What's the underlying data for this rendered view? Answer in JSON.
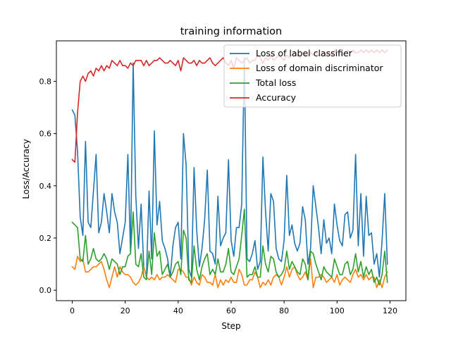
{
  "chart_data": {
    "type": "line",
    "title": "training information",
    "xlabel": "Step",
    "ylabel": "Loss/Accuracy",
    "xlim": [
      -6,
      126
    ],
    "ylim": [
      -0.04,
      0.955
    ],
    "xticks": [
      0,
      20,
      40,
      60,
      80,
      100,
      120
    ],
    "yticks": [
      0.0,
      0.2,
      0.4,
      0.6,
      0.8
    ],
    "xtick_labels": [
      "0",
      "20",
      "40",
      "60",
      "80",
      "100",
      "120"
    ],
    "ytick_labels": [
      "0.0",
      "0.2",
      "0.4",
      "0.6",
      "0.8"
    ],
    "grid": false,
    "legend": "top-right",
    "x": [
      0,
      1,
      2,
      3,
      4,
      5,
      6,
      7,
      8,
      9,
      10,
      11,
      12,
      13,
      14,
      15,
      16,
      17,
      18,
      19,
      20,
      21,
      22,
      23,
      24,
      25,
      26,
      27,
      28,
      29,
      30,
      31,
      32,
      33,
      34,
      35,
      36,
      37,
      38,
      39,
      40,
      41,
      42,
      43,
      44,
      45,
      46,
      47,
      48,
      49,
      50,
      51,
      52,
      53,
      54,
      55,
      56,
      57,
      58,
      59,
      60,
      61,
      62,
      63,
      64,
      65,
      66,
      67,
      68,
      69,
      70,
      71,
      72,
      73,
      74,
      75,
      76,
      77,
      78,
      79,
      80,
      81,
      82,
      83,
      84,
      85,
      86,
      87,
      88,
      89,
      90,
      91,
      92,
      93,
      94,
      95,
      96,
      97,
      98,
      99,
      100,
      101,
      102,
      103,
      104,
      105,
      106,
      107,
      108,
      109,
      110,
      111,
      112,
      113,
      114,
      115,
      116,
      117,
      118,
      119
    ],
    "series": [
      {
        "name": "Loss of label classifier",
        "color": "#1f77b4",
        "values": [
          0.69,
          0.67,
          0.53,
          0.28,
          0.21,
          0.57,
          0.26,
          0.24,
          0.38,
          0.52,
          0.22,
          0.26,
          0.37,
          0.3,
          0.22,
          0.37,
          0.3,
          0.26,
          0.14,
          0.2,
          0.26,
          0.52,
          0.14,
          0.87,
          0.36,
          0.16,
          0.33,
          0.09,
          0.05,
          0.38,
          0.12,
          0.61,
          0.25,
          0.34,
          0.19,
          0.16,
          0.12,
          0.05,
          0.17,
          0.24,
          0.26,
          0.12,
          0.6,
          0.48,
          0.08,
          0.05,
          0.47,
          0.23,
          0.09,
          0.16,
          0.27,
          0.46,
          0.15,
          0.14,
          0.1,
          0.36,
          0.17,
          0.2,
          0.22,
          0.5,
          0.19,
          0.13,
          0.24,
          0.24,
          0.33,
          0.89,
          0.12,
          0.11,
          0.14,
          0.19,
          0.08,
          0.11,
          0.51,
          0.3,
          0.15,
          0.37,
          0.34,
          0.16,
          0.12,
          0.11,
          0.19,
          0.44,
          0.21,
          0.25,
          0.18,
          0.15,
          0.18,
          0.32,
          0.27,
          0.1,
          0.16,
          0.4,
          0.32,
          0.24,
          0.14,
          0.27,
          0.18,
          0.2,
          0.14,
          0.33,
          0.25,
          0.19,
          0.17,
          0.29,
          0.3,
          0.2,
          0.23,
          0.52,
          0.17,
          0.37,
          0.13,
          0.36,
          0.21,
          0.22,
          0.1,
          0.14,
          0.05,
          0.19,
          0.37,
          0.1
        ]
      },
      {
        "name": "Loss of domain discriminator",
        "color": "#ff7f0e",
        "values": [
          0.09,
          0.08,
          0.13,
          0.11,
          0.12,
          0.07,
          0.07,
          0.08,
          0.09,
          0.09,
          0.1,
          0.11,
          0.08,
          0.04,
          0.01,
          0.05,
          0.09,
          0.05,
          0.09,
          0.07,
          0.06,
          0.06,
          0.05,
          0.03,
          0.02,
          0.03,
          0.05,
          0.09,
          0.05,
          0.04,
          0.05,
          0.04,
          0.06,
          0.04,
          0.05,
          0.05,
          0.06,
          0.05,
          0.04,
          0.03,
          0.08,
          0.08,
          0.07,
          0.05,
          0.05,
          0.02,
          0.05,
          0.03,
          0.02,
          0.06,
          0.05,
          0.03,
          0.03,
          0.02,
          0.06,
          0.01,
          0.04,
          0.02,
          0.04,
          0.03,
          0.05,
          0.03,
          0.03,
          0.08,
          0.06,
          0.02,
          0.02,
          0.04,
          0.04,
          0.07,
          0.05,
          0.01,
          0.03,
          0.02,
          0.04,
          0.02,
          0.05,
          0.06,
          0.05,
          0.02,
          0.05,
          0.09,
          0.05,
          0.08,
          0.09,
          0.06,
          0.04,
          0.05,
          0.07,
          0.04,
          0.12,
          0.01,
          0.05,
          0.05,
          0.06,
          0.05,
          0.03,
          0.04,
          0.05,
          0.03,
          0.06,
          0.02,
          0.04,
          0.05,
          0.04,
          0.03,
          0.06,
          0.08,
          0.05,
          0.06,
          0.04,
          0.06,
          0.04,
          0.05,
          0.05,
          0.01,
          0.04,
          0.01,
          0.05,
          0.07
        ]
      },
      {
        "name": "Total loss",
        "color": "#2ca02c",
        "values": [
          0.26,
          0.25,
          0.24,
          0.12,
          0.11,
          0.21,
          0.1,
          0.12,
          0.16,
          0.12,
          0.11,
          0.12,
          0.14,
          0.12,
          0.08,
          0.12,
          0.11,
          0.1,
          0.06,
          0.09,
          0.09,
          0.13,
          0.14,
          0.3,
          0.1,
          0.09,
          0.14,
          0.05,
          0.04,
          0.15,
          0.06,
          0.22,
          0.13,
          0.15,
          0.06,
          0.08,
          0.1,
          0.05,
          0.07,
          0.1,
          0.11,
          0.06,
          0.23,
          0.2,
          0.04,
          0.03,
          0.17,
          0.08,
          0.04,
          0.09,
          0.12,
          0.14,
          0.06,
          0.08,
          0.06,
          0.12,
          0.07,
          0.07,
          0.1,
          0.16,
          0.07,
          0.06,
          0.09,
          0.12,
          0.21,
          0.31,
          0.05,
          0.06,
          0.06,
          0.09,
          0.05,
          0.05,
          0.17,
          0.1,
          0.07,
          0.13,
          0.12,
          0.07,
          0.05,
          0.06,
          0.08,
          0.15,
          0.08,
          0.11,
          0.09,
          0.07,
          0.06,
          0.12,
          0.1,
          0.04,
          0.15,
          0.14,
          0.1,
          0.07,
          0.04,
          0.09,
          0.07,
          0.06,
          0.05,
          0.12,
          0.09,
          0.06,
          0.06,
          0.1,
          0.11,
          0.06,
          0.08,
          0.14,
          0.07,
          0.11,
          0.05,
          0.09,
          0.06,
          0.08,
          0.03,
          0.05,
          0.02,
          0.06,
          0.15,
          0.03
        ]
      },
      {
        "name": "Accuracy",
        "color": "#d62728",
        "values": [
          0.5,
          0.49,
          0.68,
          0.8,
          0.82,
          0.8,
          0.83,
          0.84,
          0.82,
          0.85,
          0.84,
          0.86,
          0.84,
          0.86,
          0.85,
          0.88,
          0.87,
          0.86,
          0.88,
          0.86,
          0.86,
          0.85,
          0.87,
          0.86,
          0.88,
          0.88,
          0.88,
          0.86,
          0.88,
          0.86,
          0.87,
          0.88,
          0.88,
          0.89,
          0.88,
          0.87,
          0.87,
          0.88,
          0.87,
          0.86,
          0.88,
          0.84,
          0.89,
          0.88,
          0.87,
          0.87,
          0.88,
          0.86,
          0.88,
          0.87,
          0.87,
          0.88,
          0.89,
          0.87,
          0.86,
          0.87,
          0.88,
          0.89,
          0.87,
          0.86,
          0.88,
          0.85,
          0.89,
          0.88,
          0.87,
          0.88,
          0.89,
          0.87,
          0.88,
          0.88,
          0.9,
          0.89,
          0.87,
          0.89,
          0.88,
          0.9,
          0.88,
          0.89,
          0.9,
          0.89,
          0.88,
          0.9,
          0.89,
          0.9,
          0.91,
          0.9,
          0.89,
          0.91,
          0.9,
          0.9,
          0.91,
          0.9,
          0.91,
          0.9,
          0.9,
          0.91,
          0.9,
          0.91,
          0.9,
          0.92,
          0.91,
          0.91,
          0.9,
          0.91,
          0.92,
          0.91,
          0.92,
          0.91,
          0.91,
          0.92,
          0.91,
          0.92,
          0.91,
          0.92,
          0.91,
          0.92,
          0.91,
          0.92,
          0.91,
          0.92
        ]
      }
    ]
  }
}
